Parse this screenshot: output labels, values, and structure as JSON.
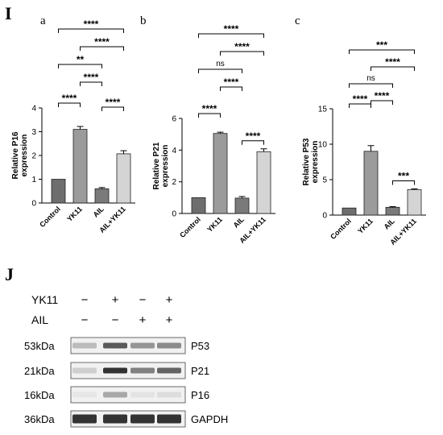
{
  "panel_I": {
    "label": "I",
    "charts": [
      {
        "letter": "a",
        "type": "bar",
        "ylabel_lines": [
          "Relative P16",
          "expression"
        ],
        "categories": [
          "Control",
          "YK11",
          "AIL",
          "AIL+YK11"
        ],
        "values": [
          1.0,
          3.1,
          0.6,
          2.07
        ],
        "errors": [
          0.0,
          0.12,
          0.05,
          0.13
        ],
        "ylim": [
          0,
          4
        ],
        "yticks": [
          0,
          1,
          2,
          3,
          4
        ],
        "bar_colors": [
          "#6e6e6e",
          "#9b9b9b",
          "#7a7a7a",
          "#d4d4d4"
        ],
        "comparisons": [
          {
            "from": 0,
            "to": 1,
            "label": "****"
          },
          {
            "from": 2,
            "to": 3,
            "label": "****"
          },
          {
            "from": 1,
            "to": 2,
            "label": "****"
          },
          {
            "from": 0,
            "to": 2,
            "label": "**"
          },
          {
            "from": 1,
            "to": 3,
            "label": "****"
          },
          {
            "from": 0,
            "to": 3,
            "label": "****"
          }
        ]
      },
      {
        "letter": "b",
        "type": "bar",
        "ylabel_lines": [
          "Relative P21",
          "expression"
        ],
        "categories": [
          "Control",
          "YK11",
          "AIL",
          "AIL+YK11"
        ],
        "values": [
          1.0,
          5.05,
          0.97,
          3.9
        ],
        "errors": [
          0.0,
          0.08,
          0.1,
          0.18
        ],
        "ylim": [
          0,
          6
        ],
        "yticks": [
          0,
          2,
          4,
          6
        ],
        "bar_colors": [
          "#6e6e6e",
          "#9b9b9b",
          "#7a7a7a",
          "#d4d4d4"
        ],
        "comparisons": [
          {
            "from": 0,
            "to": 1,
            "label": "****"
          },
          {
            "from": 2,
            "to": 3,
            "label": "****"
          },
          {
            "from": 1,
            "to": 2,
            "label": "****"
          },
          {
            "from": 0,
            "to": 2,
            "label": "ns"
          },
          {
            "from": 1,
            "to": 3,
            "label": "****"
          },
          {
            "from": 0,
            "to": 3,
            "label": "****"
          }
        ]
      },
      {
        "letter": "c",
        "type": "bar",
        "ylabel_lines": [
          "Relative P53",
          "expression"
        ],
        "categories": [
          "Control",
          "YK11",
          "AIL",
          "AIL+YK11"
        ],
        "values": [
          1.0,
          9.0,
          1.1,
          3.6
        ],
        "errors": [
          0.0,
          0.8,
          0.1,
          0.1
        ],
        "ylim": [
          0,
          15
        ],
        "yticks": [
          0,
          5,
          10,
          15
        ],
        "bar_colors": [
          "#6e6e6e",
          "#9b9b9b",
          "#7a7a7a",
          "#d4d4d4"
        ],
        "comparisons": [
          {
            "from": 0,
            "to": 1,
            "label": "****"
          },
          {
            "from": 2,
            "to": 3,
            "label": "***"
          },
          {
            "from": 1,
            "to": 2,
            "label": "****"
          },
          {
            "from": 0,
            "to": 2,
            "label": "ns"
          },
          {
            "from": 1,
            "to": 3,
            "label": "****"
          },
          {
            "from": 0,
            "to": 3,
            "label": "***"
          }
        ]
      }
    ]
  },
  "panel_J": {
    "label": "J",
    "conditions": [
      {
        "name": "YK11",
        "marks": [
          "−",
          "+",
          "−",
          "+"
        ]
      },
      {
        "name": "AIL",
        "marks": [
          "−",
          "−",
          "+",
          "+"
        ]
      }
    ],
    "blots": [
      {
        "size": "53kDa",
        "protein": "P53",
        "intensity": [
          0.25,
          0.75,
          0.45,
          0.5
        ]
      },
      {
        "size": "21kDa",
        "protein": "P21",
        "intensity": [
          0.15,
          0.95,
          0.55,
          0.7
        ]
      },
      {
        "size": "16kDa",
        "protein": "P16",
        "intensity": [
          0.03,
          0.35,
          0.05,
          0.08
        ]
      },
      {
        "size": "36kDa",
        "protein": "GAPDH",
        "intensity": [
          0.95,
          0.95,
          0.95,
          0.95
        ]
      }
    ]
  }
}
